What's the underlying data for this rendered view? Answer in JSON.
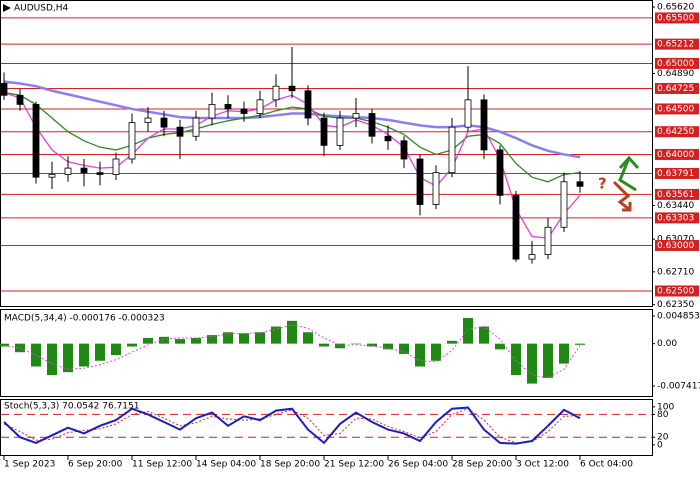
{
  "chart_data": {
    "type": "candlestick",
    "title": "AUDUSD,H4",
    "annotation": "?",
    "categories": [
      "1 Sep 2023",
      null,
      null,
      null,
      "6 Sep 20:00",
      null,
      null,
      null,
      "11 Sep 12:00",
      null,
      null,
      null,
      "14 Sep 04:00",
      null,
      null,
      null,
      "18 Sep 20:00",
      null,
      null,
      null,
      "21 Sep 12:00",
      null,
      null,
      null,
      "26 Sep 04:00",
      null,
      null,
      null,
      "28 Sep 20:00",
      null,
      null,
      null,
      "3 Oct 12:00",
      null,
      null,
      null,
      "6 Oct 04:00"
    ],
    "open": [
      0.6478,
      0.6465,
      0.6455,
      0.6375,
      0.6378,
      0.6385,
      0.638,
      0.6378,
      0.6395,
      0.6435,
      0.644,
      0.643,
      0.642,
      0.644,
      0.6455,
      0.645,
      0.6445,
      0.646,
      0.6475,
      0.647,
      0.644,
      0.641,
      0.644,
      0.6445,
      0.642,
      0.6415,
      0.6395,
      0.6345,
      0.638,
      0.643,
      0.646,
      0.6405,
      0.6355,
      0.6285,
      0.629,
      0.632,
      0.637
    ],
    "high": [
      0.649,
      0.6472,
      0.6458,
      0.6392,
      0.6398,
      0.6395,
      0.6392,
      0.6402,
      0.6445,
      0.6452,
      0.6448,
      0.6438,
      0.6448,
      0.6468,
      0.6465,
      0.6458,
      0.647,
      0.6488,
      0.6518,
      0.6476,
      0.6446,
      0.6448,
      0.6462,
      0.645,
      0.6432,
      0.642,
      0.64,
      0.6388,
      0.644,
      0.6497,
      0.6466,
      0.641,
      0.636,
      0.6305,
      0.633,
      0.638,
      0.6382
    ],
    "low": [
      0.646,
      0.6448,
      0.6368,
      0.6362,
      0.637,
      0.6365,
      0.6366,
      0.6372,
      0.639,
      0.6425,
      0.642,
      0.6395,
      0.6415,
      0.6432,
      0.644,
      0.6436,
      0.644,
      0.6452,
      0.6462,
      0.6432,
      0.6398,
      0.6405,
      0.643,
      0.6412,
      0.6405,
      0.6385,
      0.6333,
      0.634,
      0.6375,
      0.6425,
      0.6395,
      0.6345,
      0.6282,
      0.628,
      0.6285,
      0.6315,
      0.6358
    ],
    "close": [
      0.6465,
      0.6455,
      0.6375,
      0.6378,
      0.6385,
      0.638,
      0.6378,
      0.6395,
      0.6435,
      0.644,
      0.643,
      0.642,
      0.644,
      0.6455,
      0.645,
      0.6445,
      0.646,
      0.6475,
      0.647,
      0.644,
      0.641,
      0.644,
      0.6445,
      0.642,
      0.6415,
      0.6395,
      0.6345,
      0.638,
      0.643,
      0.646,
      0.6405,
      0.6355,
      0.6285,
      0.629,
      0.632,
      0.637,
      0.6365
    ],
    "ma": [
      {
        "color": "#8a7ff0",
        "values": [
          0.648,
          0.6478,
          0.6475,
          0.647,
          0.6466,
          0.6462,
          0.6458,
          0.6454,
          0.645,
          0.6447,
          0.6444,
          0.6441,
          0.644,
          0.644,
          0.644,
          0.644,
          0.6441,
          0.6443,
          0.6445,
          0.6445,
          0.6443,
          0.6442,
          0.6441,
          0.644,
          0.6438,
          0.6435,
          0.6432,
          0.643,
          0.643,
          0.6432,
          0.643,
          0.6425,
          0.6418,
          0.641,
          0.6404,
          0.64,
          0.6397
        ]
      },
      {
        "color": "#2e8b22",
        "values": [
          0.6468,
          0.6465,
          0.6455,
          0.644,
          0.6425,
          0.6415,
          0.6408,
          0.6405,
          0.641,
          0.6418,
          0.6422,
          0.6424,
          0.6428,
          0.6433,
          0.6437,
          0.644,
          0.6443,
          0.6448,
          0.6452,
          0.645,
          0.6442,
          0.644,
          0.644,
          0.6436,
          0.643,
          0.6422,
          0.6408,
          0.64,
          0.6405,
          0.642,
          0.6422,
          0.6412,
          0.639,
          0.6375,
          0.637,
          0.6378,
          0.638
        ]
      },
      {
        "color": "#e040e0",
        "values": [
          0.6468,
          0.6462,
          0.643,
          0.6405,
          0.6392,
          0.6388,
          0.6385,
          0.6386,
          0.64,
          0.6418,
          0.6428,
          0.6428,
          0.6432,
          0.6442,
          0.6448,
          0.6447,
          0.645,
          0.646,
          0.6465,
          0.6455,
          0.6432,
          0.643,
          0.6438,
          0.6432,
          0.6422,
          0.6408,
          0.6375,
          0.6365,
          0.6385,
          0.6425,
          0.6428,
          0.6395,
          0.634,
          0.631,
          0.6308,
          0.6335,
          0.6355
        ]
      }
    ],
    "ylim": [
      0.62324,
      0.65686
    ],
    "yticks": [
      {
        "value": 0.6562,
        "label": "0.65620"
      },
      {
        "value": 0.6489,
        "label": "0.64890"
      },
      {
        "value": 0.6344,
        "label": "0.63440"
      },
      {
        "value": 0.6307,
        "label": "0.63070"
      },
      {
        "value": 0.6271,
        "label": "0.62710"
      },
      {
        "value": 0.6235,
        "label": "0.62350"
      }
    ],
    "levels": [
      {
        "value": 0.655,
        "label": "0.65500"
      },
      {
        "value": 0.65212,
        "label": "0.65212"
      },
      {
        "value": 0.65,
        "label": "0.65000"
      },
      {
        "value": 0.64725,
        "label": "0.64725"
      },
      {
        "value": 0.645,
        "label": "0.64500"
      },
      {
        "value": 0.6425,
        "label": "0.64250"
      },
      {
        "value": 0.64,
        "label": "0.64000"
      },
      {
        "value": 0.63791,
        "label": "0.63791"
      },
      {
        "value": 0.63561,
        "label": "0.63561"
      },
      {
        "value": 0.63303,
        "label": "0.63303"
      },
      {
        "value": 0.63,
        "label": "0.63000"
      },
      {
        "value": 0.625,
        "label": "0.62500"
      }
    ],
    "level_color": "#d42020",
    "macd": {
      "title": "MACD(5,34,4) -0.000176 -0.000323",
      "ylim": [
        -0.00935,
        0.0059
      ],
      "yticks": [
        0.004853,
        {
          "value": 0,
          "label": "0.00"
        },
        -0.007417
      ],
      "color": "#1f8a12",
      "signal_color": "#e040e0",
      "histogram": [
        -0.0005,
        -0.0015,
        -0.004,
        -0.0055,
        -0.005,
        -0.004,
        -0.003,
        -0.002,
        -0.0005,
        0.001,
        0.0012,
        0.0008,
        0.001,
        0.0015,
        0.002,
        0.0018,
        0.002,
        0.003,
        0.004,
        0.002,
        -0.0005,
        -0.0008,
        0.0,
        -0.0005,
        -0.001,
        -0.0018,
        -0.004,
        -0.003,
        0.0005,
        0.0045,
        0.003,
        -0.001,
        -0.0055,
        -0.007,
        -0.006,
        -0.0035,
        -0.0002
      ],
      "signal": [
        -0.0003,
        -0.0008,
        -0.002,
        -0.0035,
        -0.0045,
        -0.0043,
        -0.0037,
        -0.0028,
        -0.0015,
        -0.0002,
        0.0008,
        0.001,
        0.001,
        0.0012,
        0.0017,
        0.0018,
        0.0019,
        0.0025,
        0.0033,
        0.0027,
        0.001,
        -0.0003,
        -0.0002,
        -0.0004,
        -0.0008,
        -0.0014,
        -0.003,
        -0.0032,
        -0.0012,
        0.0025,
        0.003,
        0.0008,
        -0.003,
        -0.0055,
        -0.006,
        -0.0045,
        -0.0003
      ]
    },
    "stoch": {
      "title": "Stoch(5,3,3) 70.0542 76.7151",
      "ylim": [
        -29.5,
        118
      ],
      "yticks": [
        0,
        20,
        80,
        100
      ],
      "levels": [
        20,
        80
      ],
      "color": "#1c1cc8",
      "signal_color": "#e02020",
      "main": [
        60,
        20,
        5,
        25,
        45,
        30,
        50,
        65,
        95,
        80,
        60,
        40,
        70,
        85,
        50,
        75,
        65,
        90,
        95,
        40,
        5,
        55,
        85,
        60,
        40,
        30,
        10,
        60,
        95,
        98,
        40,
        5,
        3,
        10,
        50,
        92,
        70
      ],
      "signal": [
        55,
        35,
        12,
        15,
        32,
        38,
        42,
        55,
        80,
        88,
        70,
        50,
        58,
        75,
        68,
        65,
        68,
        80,
        92,
        70,
        25,
        30,
        70,
        68,
        48,
        35,
        18,
        35,
        80,
        95,
        65,
        20,
        5,
        8,
        35,
        75,
        77
      ]
    }
  }
}
